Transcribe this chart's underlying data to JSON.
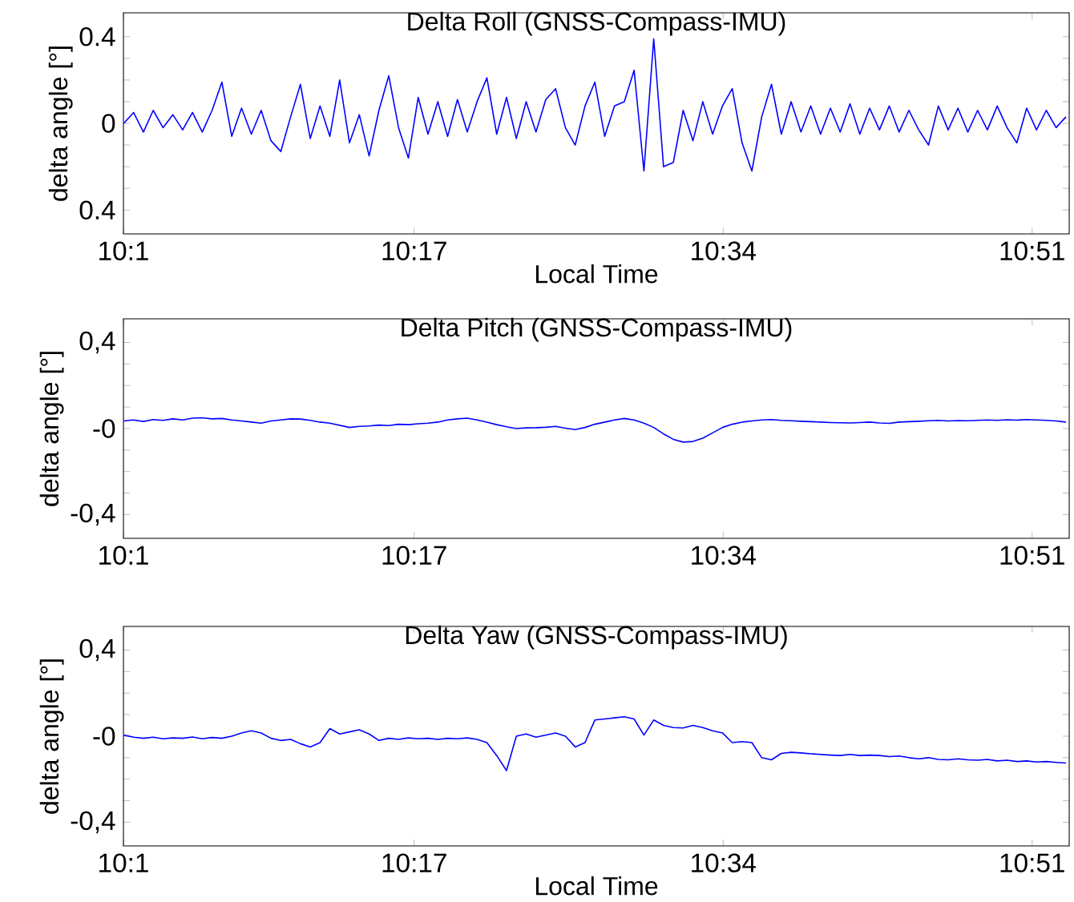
{
  "chart_data": [
    {
      "type": "line",
      "title": "Delta Roll (GNSS-Compass-IMU)",
      "xlabel": "Local Time",
      "ylabel": "delta angle [°]",
      "x": [
        10.017,
        10.026,
        10.035,
        10.044,
        10.053,
        10.062,
        10.071,
        10.08,
        10.089,
        10.098,
        10.107,
        10.116,
        10.125,
        10.134,
        10.143,
        10.152,
        10.161,
        10.17,
        10.179,
        10.188,
        10.197,
        10.206,
        10.215,
        10.224,
        10.233,
        10.242,
        10.251,
        10.26,
        10.269,
        10.278,
        10.287,
        10.296,
        10.305,
        10.314,
        10.323,
        10.332,
        10.341,
        10.35,
        10.359,
        10.368,
        10.377,
        10.386,
        10.395,
        10.404,
        10.413,
        10.422,
        10.431,
        10.44,
        10.449,
        10.458,
        10.467,
        10.476,
        10.485,
        10.494,
        10.503,
        10.512,
        10.521,
        10.53,
        10.539,
        10.548,
        10.557,
        10.566,
        10.575,
        10.584,
        10.593,
        10.602,
        10.611,
        10.62,
        10.629,
        10.638,
        10.647,
        10.656,
        10.665,
        10.674,
        10.683,
        10.692,
        10.701,
        10.71,
        10.719,
        10.728,
        10.737,
        10.746,
        10.755,
        10.764,
        10.773,
        10.782,
        10.791,
        10.8,
        10.809,
        10.818,
        10.827,
        10.836,
        10.845,
        10.854,
        10.863,
        10.872,
        10.881
      ],
      "series": [
        {
          "color": "#0000ff",
          "values": [
            0.0,
            0.05,
            -0.04,
            0.06,
            -0.02,
            0.04,
            -0.03,
            0.05,
            -0.04,
            0.06,
            0.19,
            -0.06,
            0.07,
            -0.05,
            0.06,
            -0.08,
            -0.13,
            0.03,
            0.18,
            -0.07,
            0.08,
            -0.06,
            0.2,
            -0.09,
            0.04,
            -0.15,
            0.06,
            0.22,
            -0.02,
            -0.16,
            0.12,
            -0.05,
            0.1,
            -0.06,
            0.11,
            -0.04,
            0.1,
            0.21,
            -0.05,
            0.12,
            -0.07,
            0.1,
            -0.04,
            0.11,
            0.16,
            -0.02,
            -0.1,
            0.08,
            0.19,
            -0.06,
            0.08,
            0.1,
            0.245,
            -0.22,
            0.39,
            -0.2,
            -0.18,
            0.06,
            -0.08,
            0.1,
            -0.05,
            0.08,
            0.16,
            -0.09,
            -0.22,
            0.03,
            0.18,
            -0.05,
            0.1,
            -0.04,
            0.08,
            -0.05,
            0.07,
            -0.04,
            0.09,
            -0.05,
            0.07,
            -0.03,
            0.08,
            -0.04,
            0.06,
            -0.03,
            -0.1,
            0.08,
            -0.03,
            0.07,
            -0.04,
            0.06,
            -0.03,
            0.08,
            -0.02,
            -0.09,
            0.07,
            -0.03,
            0.06,
            -0.02,
            0.03
          ]
        }
      ],
      "xlim": [
        10.0167,
        10.884
      ],
      "ylim": [
        -0.51,
        0.51
      ],
      "xticks": [
        {
          "value": 10.0167,
          "label": "10:1"
        },
        {
          "value": 10.2833,
          "label": "10:17"
        },
        {
          "value": 10.5667,
          "label": "10:34"
        },
        {
          "value": 10.85,
          "label": "10:51"
        }
      ],
      "yticks": [
        {
          "value": -0.4,
          "label": "0.4"
        },
        {
          "value": -0.3,
          "label": null
        },
        {
          "value": -0.2,
          "label": null
        },
        {
          "value": -0.1,
          "label": null
        },
        {
          "value": 0,
          "label": "0"
        },
        {
          "value": 0.1,
          "label": null
        },
        {
          "value": 0.2,
          "label": null
        },
        {
          "value": 0.3,
          "label": null
        },
        {
          "value": 0.4,
          "label": "0.4"
        }
      ]
    },
    {
      "type": "line",
      "title": "Delta Pitch (GNSS-Compass-IMU)",
      "ylabel": "delta angle [°]",
      "x": [
        10.017,
        10.026,
        10.035,
        10.044,
        10.053,
        10.062,
        10.071,
        10.08,
        10.089,
        10.098,
        10.107,
        10.116,
        10.125,
        10.134,
        10.143,
        10.152,
        10.161,
        10.17,
        10.179,
        10.188,
        10.197,
        10.206,
        10.215,
        10.224,
        10.233,
        10.242,
        10.251,
        10.26,
        10.269,
        10.278,
        10.287,
        10.296,
        10.305,
        10.314,
        10.323,
        10.332,
        10.341,
        10.35,
        10.359,
        10.368,
        10.377,
        10.386,
        10.395,
        10.404,
        10.413,
        10.422,
        10.431,
        10.44,
        10.449,
        10.458,
        10.467,
        10.476,
        10.485,
        10.494,
        10.503,
        10.512,
        10.521,
        10.53,
        10.539,
        10.548,
        10.557,
        10.566,
        10.575,
        10.584,
        10.593,
        10.602,
        10.611,
        10.62,
        10.629,
        10.638,
        10.647,
        10.656,
        10.665,
        10.674,
        10.683,
        10.692,
        10.701,
        10.71,
        10.719,
        10.728,
        10.737,
        10.746,
        10.755,
        10.764,
        10.773,
        10.782,
        10.791,
        10.8,
        10.809,
        10.818,
        10.827,
        10.836,
        10.845,
        10.854,
        10.863,
        10.872,
        10.881
      ],
      "series": [
        {
          "color": "#0000ff",
          "values": [
            0.035,
            0.04,
            0.033,
            0.042,
            0.038,
            0.045,
            0.04,
            0.048,
            0.05,
            0.045,
            0.047,
            0.04,
            0.035,
            0.03,
            0.025,
            0.035,
            0.04,
            0.045,
            0.044,
            0.038,
            0.03,
            0.025,
            0.015,
            0.005,
            0.01,
            0.012,
            0.016,
            0.014,
            0.02,
            0.018,
            0.022,
            0.025,
            0.03,
            0.04,
            0.045,
            0.048,
            0.04,
            0.03,
            0.018,
            0.008,
            0.0,
            0.003,
            0.004,
            0.006,
            0.01,
            0.002,
            -0.005,
            0.005,
            0.02,
            0.03,
            0.04,
            0.047,
            0.04,
            0.025,
            0.005,
            -0.025,
            -0.05,
            -0.063,
            -0.06,
            -0.045,
            -0.02,
            0.005,
            0.02,
            0.03,
            0.035,
            0.04,
            0.042,
            0.038,
            0.036,
            0.034,
            0.032,
            0.03,
            0.028,
            0.027,
            0.026,
            0.028,
            0.03,
            0.026,
            0.024,
            0.03,
            0.032,
            0.034,
            0.036,
            0.038,
            0.035,
            0.037,
            0.036,
            0.038,
            0.04,
            0.038,
            0.041,
            0.039,
            0.042,
            0.04,
            0.038,
            0.035,
            0.03
          ]
        }
      ],
      "xlim": [
        10.0167,
        10.884
      ],
      "ylim": [
        -0.51,
        0.51
      ],
      "xticks": [
        {
          "value": 10.0167,
          "label": "10:1"
        },
        {
          "value": 10.2833,
          "label": "10:17"
        },
        {
          "value": 10.5667,
          "label": "10:34"
        },
        {
          "value": 10.85,
          "label": "10:51"
        }
      ],
      "yticks": [
        {
          "value": -0.4,
          "label": "-0,4"
        },
        {
          "value": -0.3,
          "label": null
        },
        {
          "value": -0.2,
          "label": null
        },
        {
          "value": -0.1,
          "label": null
        },
        {
          "value": 0,
          "label": "-0"
        },
        {
          "value": 0.1,
          "label": null
        },
        {
          "value": 0.2,
          "label": null
        },
        {
          "value": 0.3,
          "label": null
        },
        {
          "value": 0.4,
          "label": "0,4"
        }
      ]
    },
    {
      "type": "line",
      "title": "Delta Yaw (GNSS-Compass-IMU)",
      "xlabel": "Local Time",
      "ylabel": "delta angle [°]",
      "x": [
        10.017,
        10.026,
        10.035,
        10.044,
        10.053,
        10.062,
        10.071,
        10.08,
        10.089,
        10.098,
        10.107,
        10.116,
        10.125,
        10.134,
        10.143,
        10.152,
        10.161,
        10.17,
        10.179,
        10.188,
        10.197,
        10.206,
        10.215,
        10.224,
        10.233,
        10.242,
        10.251,
        10.26,
        10.269,
        10.278,
        10.287,
        10.296,
        10.305,
        10.314,
        10.323,
        10.332,
        10.341,
        10.35,
        10.359,
        10.368,
        10.377,
        10.386,
        10.395,
        10.404,
        10.413,
        10.422,
        10.431,
        10.44,
        10.449,
        10.458,
        10.467,
        10.476,
        10.485,
        10.494,
        10.503,
        10.512,
        10.521,
        10.53,
        10.539,
        10.548,
        10.557,
        10.566,
        10.575,
        10.584,
        10.593,
        10.602,
        10.611,
        10.62,
        10.629,
        10.638,
        10.647,
        10.656,
        10.665,
        10.674,
        10.683,
        10.692,
        10.701,
        10.71,
        10.719,
        10.728,
        10.737,
        10.746,
        10.755,
        10.764,
        10.773,
        10.782,
        10.791,
        10.8,
        10.809,
        10.818,
        10.827,
        10.836,
        10.845,
        10.854,
        10.863,
        10.872,
        10.881
      ],
      "series": [
        {
          "color": "#0000ff",
          "values": [
            0.005,
            -0.005,
            -0.01,
            -0.005,
            -0.012,
            -0.008,
            -0.01,
            -0.004,
            -0.012,
            -0.006,
            -0.01,
            0.0,
            0.015,
            0.025,
            0.015,
            -0.01,
            -0.02,
            -0.015,
            -0.035,
            -0.05,
            -0.03,
            0.035,
            0.01,
            0.02,
            0.03,
            0.01,
            -0.02,
            -0.01,
            -0.015,
            -0.008,
            -0.012,
            -0.01,
            -0.015,
            -0.01,
            -0.012,
            -0.008,
            -0.015,
            -0.03,
            -0.09,
            -0.16,
            0.0,
            0.01,
            -0.005,
            0.005,
            0.015,
            0.0,
            -0.05,
            -0.03,
            0.075,
            0.08,
            0.085,
            0.09,
            0.08,
            0.005,
            0.075,
            0.05,
            0.04,
            0.038,
            0.05,
            0.04,
            0.025,
            0.015,
            -0.03,
            -0.025,
            -0.03,
            -0.1,
            -0.11,
            -0.08,
            -0.075,
            -0.078,
            -0.082,
            -0.085,
            -0.088,
            -0.09,
            -0.085,
            -0.09,
            -0.088,
            -0.09,
            -0.095,
            -0.092,
            -0.1,
            -0.105,
            -0.1,
            -0.108,
            -0.11,
            -0.105,
            -0.11,
            -0.112,
            -0.108,
            -0.115,
            -0.112,
            -0.118,
            -0.115,
            -0.12,
            -0.118,
            -0.122,
            -0.125
          ]
        }
      ],
      "xlim": [
        10.0167,
        10.884
      ],
      "ylim": [
        -0.51,
        0.51
      ],
      "xticks": [
        {
          "value": 10.0167,
          "label": "10:1"
        },
        {
          "value": 10.2833,
          "label": "10:17"
        },
        {
          "value": 10.5667,
          "label": "10:34"
        },
        {
          "value": 10.85,
          "label": "10:51"
        }
      ],
      "yticks": [
        {
          "value": -0.4,
          "label": "-0,4"
        },
        {
          "value": -0.3,
          "label": null
        },
        {
          "value": -0.2,
          "label": null
        },
        {
          "value": -0.1,
          "label": null
        },
        {
          "value": 0,
          "label": "-0"
        },
        {
          "value": 0.1,
          "label": null
        },
        {
          "value": 0.2,
          "label": null
        },
        {
          "value": 0.3,
          "label": null
        },
        {
          "value": 0.4,
          "label": "0,4"
        }
      ]
    }
  ]
}
